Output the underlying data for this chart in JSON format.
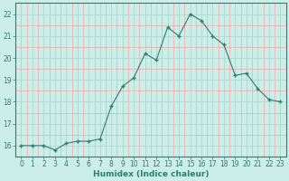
{
  "x": [
    0,
    1,
    2,
    3,
    4,
    5,
    6,
    7,
    8,
    9,
    10,
    11,
    12,
    13,
    14,
    15,
    16,
    17,
    18,
    19,
    20,
    21,
    22,
    23
  ],
  "y": [
    16.0,
    16.0,
    16.0,
    15.8,
    16.1,
    16.2,
    16.2,
    16.3,
    17.8,
    18.7,
    19.1,
    20.2,
    19.9,
    21.4,
    21.0,
    22.0,
    21.7,
    21.0,
    20.6,
    19.2,
    19.3,
    18.6,
    18.1,
    18.0
  ],
  "xlabel": "Humidex (Indice chaleur)",
  "xlim": [
    -0.5,
    23.5
  ],
  "ylim": [
    15.5,
    22.5
  ],
  "yticks": [
    16,
    17,
    18,
    19,
    20,
    21,
    22
  ],
  "xticks": [
    0,
    1,
    2,
    3,
    4,
    5,
    6,
    7,
    8,
    9,
    10,
    11,
    12,
    13,
    14,
    15,
    16,
    17,
    18,
    19,
    20,
    21,
    22,
    23
  ],
  "line_color": "#2e7d6e",
  "marker_color": "#2e7d6e",
  "bg_color": "#cceee8",
  "grid_color_major": "#b0d8d0",
  "grid_color_minor": "#f0aaaa",
  "axis_fontsize": 6.0,
  "tick_fontsize": 5.5,
  "xlabel_fontsize": 6.5
}
